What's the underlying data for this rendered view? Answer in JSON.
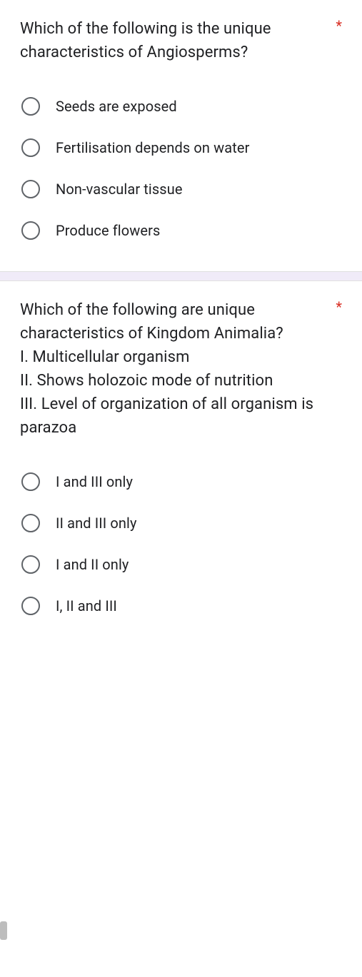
{
  "questions": [
    {
      "text": "Which of the following is the unique characteristics of Angiosperms?",
      "required": "*",
      "options": [
        "Seeds are exposed",
        "Fertilisation depends on water",
        "Non-vascular tissue",
        "Produce flowers"
      ]
    },
    {
      "text": "Which of the following are unique characteristics of Kingdom Animalia?\nI. Multicellular organism\nII. Shows holozoic mode of nutrition\nIII. Level of organization of all organism is parazoa",
      "required": "*",
      "options": [
        "I and III only",
        "II and III only",
        "I and II only",
        "I, II and III"
      ]
    }
  ],
  "colors": {
    "text": "#202124",
    "required": "#d93025",
    "radio_border": "#5f6368",
    "divider": "#f0ebf8"
  }
}
